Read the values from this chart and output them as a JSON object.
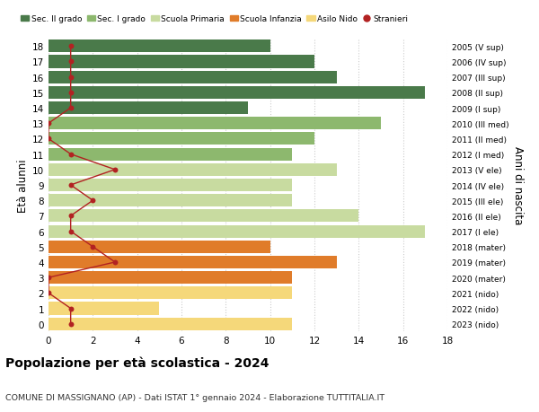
{
  "ages": [
    0,
    1,
    2,
    3,
    4,
    5,
    6,
    7,
    8,
    9,
    10,
    11,
    12,
    13,
    14,
    15,
    16,
    17,
    18
  ],
  "right_labels": [
    "2023 (nido)",
    "2022 (nido)",
    "2021 (nido)",
    "2020 (mater)",
    "2019 (mater)",
    "2018 (mater)",
    "2017 (I ele)",
    "2016 (II ele)",
    "2015 (III ele)",
    "2014 (IV ele)",
    "2013 (V ele)",
    "2012 (I med)",
    "2011 (II med)",
    "2010 (III med)",
    "2009 (I sup)",
    "2008 (II sup)",
    "2007 (III sup)",
    "2006 (IV sup)",
    "2005 (V sup)"
  ],
  "bar_values": [
    11,
    5,
    11,
    11,
    13,
    10,
    17,
    14,
    11,
    11,
    13,
    11,
    12,
    15,
    9,
    17,
    13,
    12,
    10
  ],
  "bar_colors": [
    "#f5d87a",
    "#f5d87a",
    "#f5d87a",
    "#e07c2a",
    "#e07c2a",
    "#e07c2a",
    "#c8dba0",
    "#c8dba0",
    "#c8dba0",
    "#c8dba0",
    "#c8dba0",
    "#8db86e",
    "#8db86e",
    "#8db86e",
    "#4a7a4a",
    "#4a7a4a",
    "#4a7a4a",
    "#4a7a4a",
    "#4a7a4a"
  ],
  "stranieri_values": [
    1,
    1,
    0,
    0,
    3,
    2,
    1,
    1,
    2,
    1,
    3,
    1,
    0,
    0,
    1,
    1,
    1,
    1,
    1
  ],
  "stranieri_color": "#b22222",
  "legend_labels": [
    "Sec. II grado",
    "Sec. I grado",
    "Scuola Primaria",
    "Scuola Infanzia",
    "Asilo Nido",
    "Stranieri"
  ],
  "legend_colors": [
    "#4a7a4a",
    "#8db86e",
    "#c8dba0",
    "#e07c2a",
    "#f5d87a",
    "#b22222"
  ],
  "title": "Popolazione per età scolastica - 2024",
  "subtitle": "COMUNE DI MASSIGNANO (AP) - Dati ISTAT 1° gennaio 2024 - Elaborazione TUTTITALIA.IT",
  "ylabel": "Età alunni",
  "ylabel2": "Anni di nascita",
  "xlim": [
    0,
    18
  ],
  "ylim": [
    -0.5,
    18.5
  ],
  "bg_color": "#ffffff",
  "grid_color": "#cccccc"
}
